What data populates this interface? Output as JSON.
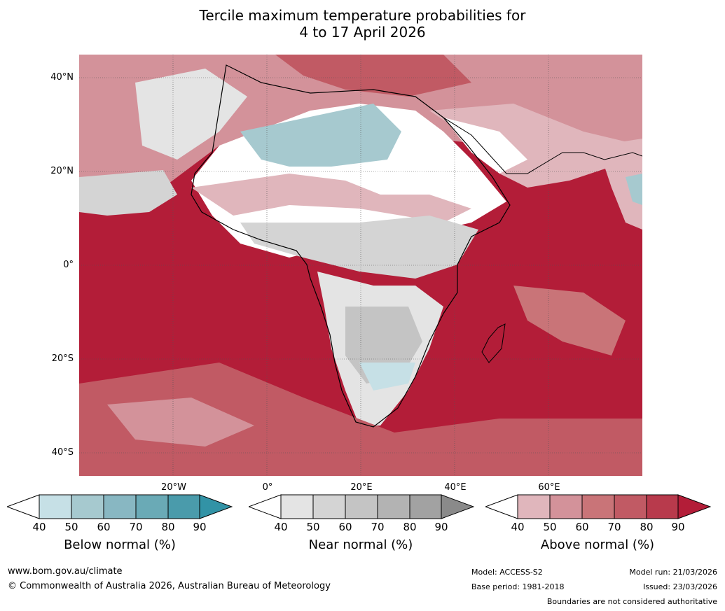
{
  "title": {
    "line1": "Tercile maximum temperature probabilities for",
    "line2": "4 to 17 April 2026"
  },
  "axes": {
    "lat_labels": [
      "40°N",
      "20°N",
      "0°",
      "20°S",
      "40°S"
    ],
    "lon_labels": [
      "20°W",
      "0°",
      "20°E",
      "40°E",
      "60°E"
    ]
  },
  "legends": {
    "below": {
      "label": "Below normal (%)",
      "ticks": [
        "40",
        "50",
        "60",
        "70",
        "80",
        "90"
      ],
      "colors": [
        "#c6e0e6",
        "#a6c9cf",
        "#88b7c2",
        "#6aaab6",
        "#4a9bab",
        "#3293a6"
      ]
    },
    "near": {
      "label": "Near normal (%)",
      "ticks": [
        "40",
        "50",
        "60",
        "70",
        "80",
        "90"
      ],
      "colors": [
        "#e4e4e4",
        "#d4d4d4",
        "#c4c4c4",
        "#b3b3b3",
        "#a2a2a2",
        "#8a8a8a"
      ]
    },
    "above": {
      "label": "Above normal (%)",
      "ticks": [
        "40",
        "50",
        "60",
        "70",
        "80",
        "90"
      ],
      "colors": [
        "#e0b6bc",
        "#d3929a",
        "#c97478",
        "#c15a64",
        "#b83a4c",
        "#b31d38"
      ]
    }
  },
  "footer": {
    "url": "www.bom.gov.au/climate",
    "copyright": "© Commonwealth of Australia 2026, Australian Bureau of Meteorology",
    "model": "Model: ACCESS-S2",
    "base_period": "Base period: 1981-2018",
    "model_run": "Model run: 21/03/2026",
    "issued": "Issued: 23/03/2026",
    "disclaimer": "Boundaries are not considered authoritative"
  }
}
